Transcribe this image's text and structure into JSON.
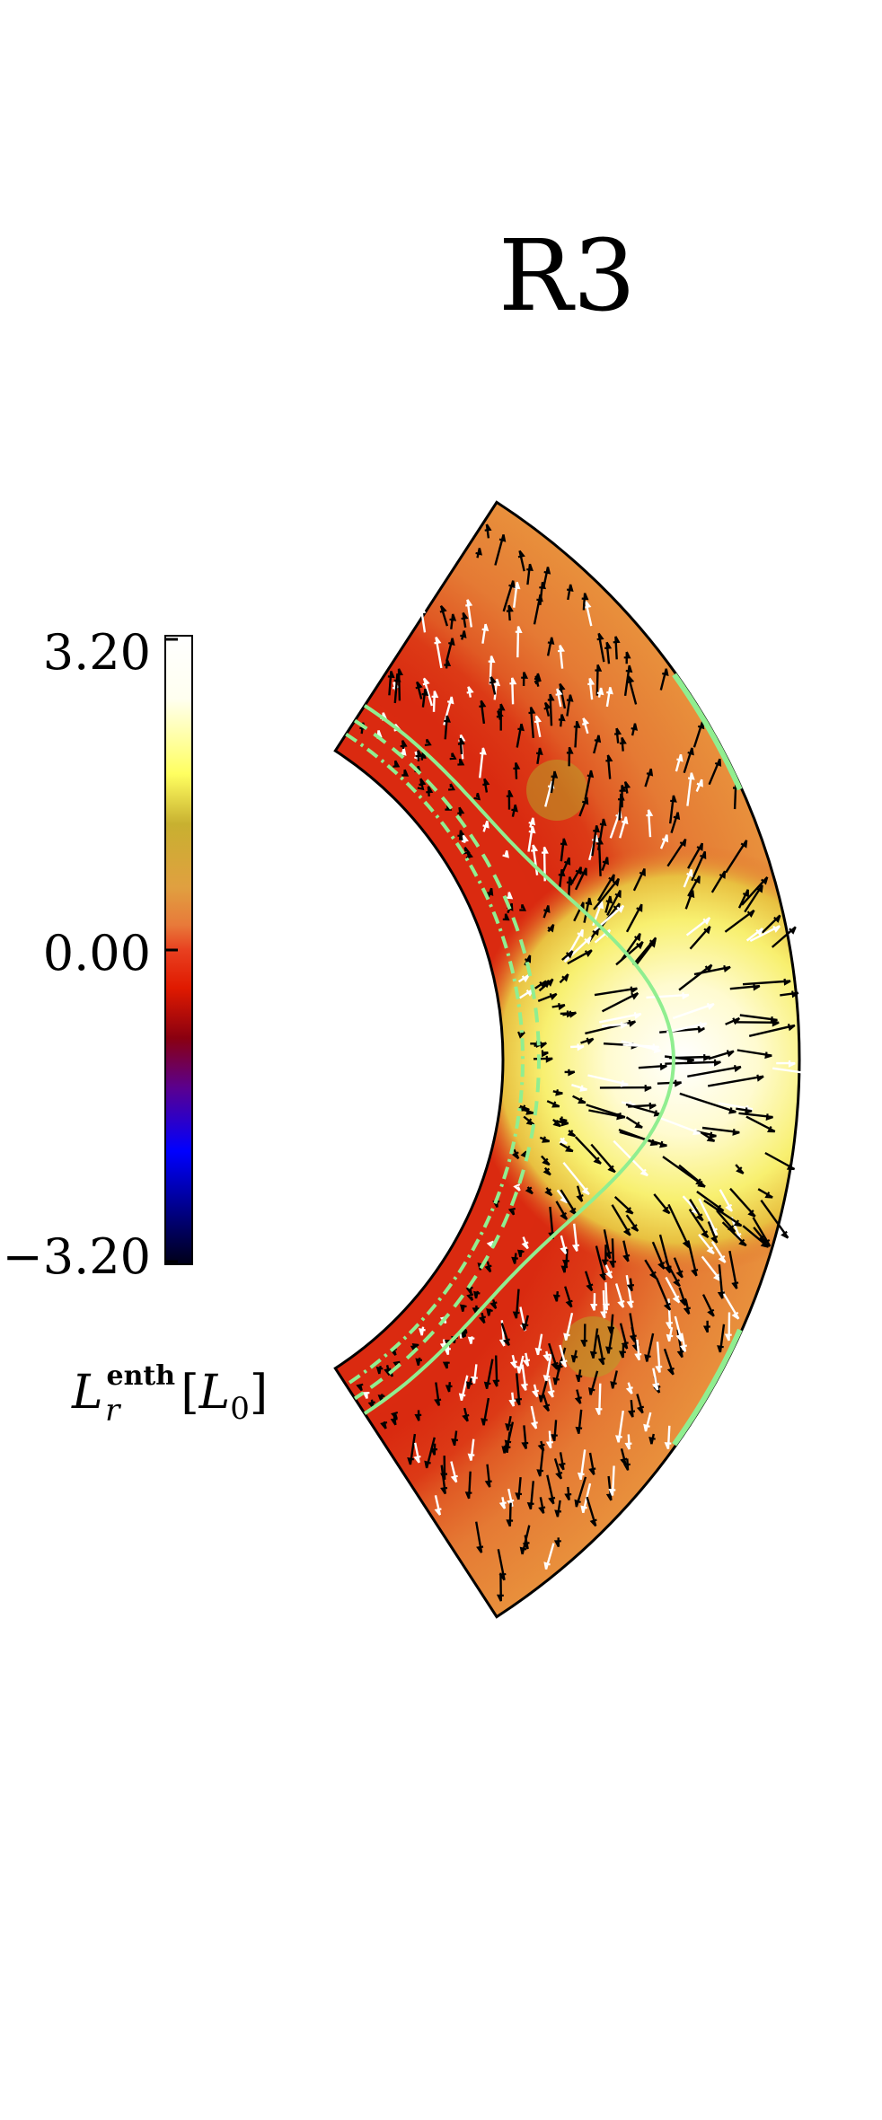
{
  "figure": {
    "run_label": "R3",
    "colorbar": {
      "tick_labels": [
        "3.20",
        "0.00",
        "−3.20"
      ],
      "max": 3.2,
      "min": -3.2,
      "quantity_symbol": "L",
      "quantity_subscript": "r",
      "quantity_superscript": "enth",
      "unit_open": "[",
      "unit_symbol": "L",
      "unit_subscript": "0",
      "unit_close": "]",
      "colormap_stops": [
        "#000018",
        "#0000ff",
        "#7a0080",
        "#e01a00",
        "#e87a3a",
        "#e0a040",
        "#c8b030",
        "#ffff40",
        "#ffffff"
      ]
    },
    "colors": {
      "shell_outer": "#e26a2a",
      "shell_inner_layer": "#d92a10",
      "hot_core": "#fffbd0",
      "contour": "#90ee90",
      "outline": "#000000"
    },
    "arrow_colors": [
      "#000000",
      "#ffffff"
    ],
    "contour_styles": [
      "solid",
      "dashed",
      "dash-dot"
    ]
  }
}
